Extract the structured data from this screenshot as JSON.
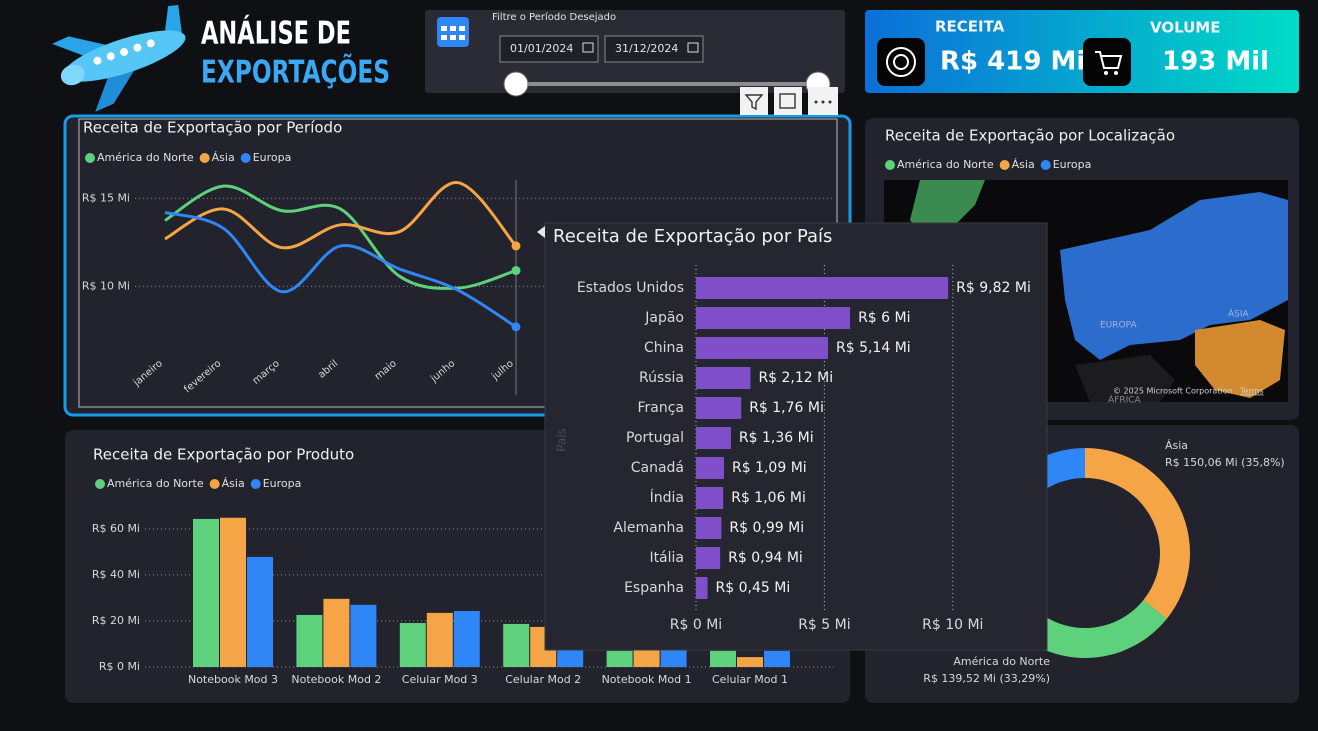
{
  "header": {
    "title_line1": "ANÁLISE DE",
    "title_line2": "EXPORTAÇÕES"
  },
  "filter": {
    "label": "Filtre o Período Desejado",
    "start_date": "01/01/2024",
    "end_date": "31/12/2024"
  },
  "kpis": [
    {
      "label": "RECEITA",
      "value": "R$ 419 Mi"
    },
    {
      "label": "VOLUME",
      "value": "193 Mil"
    }
  ],
  "map": {
    "title": "Receita de Exportação por Localização",
    "legend": [
      {
        "name": "América do Norte",
        "color": "#5dd17b"
      },
      {
        "name": "Ásia",
        "color": "#f5a545"
      },
      {
        "name": "Europa",
        "color": "#2f86f6"
      }
    ],
    "labels": [
      "EUROPA",
      "ÁSIA",
      "ÁFRICA"
    ],
    "attribution": "© 2025 Microsoft Corporation",
    "terms": "Terms"
  },
  "chart_data": [
    {
      "type": "line",
      "title": "Receita de Exportação por Período",
      "categories": [
        "janeiro",
        "fevereiro",
        "março",
        "abril",
        "maio",
        "junho",
        "julho",
        null,
        null,
        null,
        null,
        null
      ],
      "series": [
        {
          "name": "América do Norte",
          "color": "#5dd17b",
          "values": [
            13.75,
            15.7,
            14.3,
            14.4,
            10.6,
            9.9,
            10.9,
            null,
            null,
            null,
            null,
            null
          ]
        },
        {
          "name": "Ásia",
          "color": "#f5a545",
          "values": [
            12.7,
            14.4,
            12.2,
            13.5,
            13.1,
            15.9,
            12.3,
            null,
            null,
            null,
            null,
            null
          ]
        },
        {
          "name": "Europa",
          "color": "#2f86f6",
          "values": [
            14.2,
            13.3,
            9.7,
            12.3,
            11.0,
            9.8,
            7.7,
            null,
            null,
            null,
            null,
            null
          ]
        }
      ],
      "ylim": [
        6.5,
        16.5
      ],
      "yticks": [
        {
          "value": 10,
          "label": "R$ 10 Mi"
        },
        {
          "value": 15,
          "label": "R$ 15 Mi"
        }
      ],
      "grid": true
    },
    {
      "type": "bar",
      "title": "Receita de Exportação por Produto",
      "categories": [
        "Notebook Mod 3",
        "Notebook Mod 2",
        "Celular Mod 3",
        "Celular Mod 2",
        "Notebook Mod 1",
        "Celular Mod 1"
      ],
      "series": [
        {
          "name": "América do Norte",
          "color": "#5dd17b",
          "values": [
            64.3,
            22.6,
            19.1,
            18.7,
            7.0,
            7.0
          ]
        },
        {
          "name": "Ásia",
          "color": "#f5a545",
          "values": [
            64.8,
            29.6,
            23.5,
            17.4,
            7.4,
            4.3
          ]
        },
        {
          "name": "Europa",
          "color": "#2f86f6",
          "values": [
            47.8,
            27.0,
            24.3,
            7.4,
            7.4,
            7.0
          ]
        }
      ],
      "ylim": [
        0,
        66
      ],
      "yticks": [
        {
          "value": 0,
          "label": "R$ 0 Mi"
        },
        {
          "value": 20,
          "label": "R$ 20 Mi"
        },
        {
          "value": 40,
          "label": "R$ 40 Mi"
        },
        {
          "value": 60,
          "label": "R$ 60 Mi"
        }
      ],
      "grid": true
    },
    {
      "type": "donut",
      "categories": [
        "Ásia",
        "América do Norte",
        null
      ],
      "values": [
        150.06,
        139.52,
        129.48
      ],
      "value_labels": [
        "R$ 150,06 Mi (35,8%)",
        "R$ 139,52 Mi (33,29%)",
        null
      ],
      "colors": [
        "#f5a545",
        "#5dd17b",
        "#2f86f6"
      ]
    },
    {
      "type": "barh",
      "title": "Receita de Exportação por País",
      "y_label": "País",
      "categories": [
        "Estados Unidos",
        "Japão",
        "China",
        "Rússia",
        "França",
        "Portugal",
        "Canadá",
        "Índia",
        "Alemanha",
        "Itália",
        "Espanha"
      ],
      "values": [
        9.82,
        6,
        5.14,
        2.12,
        1.76,
        1.36,
        1.09,
        1.06,
        0.99,
        0.94,
        0.45
      ],
      "value_labels": [
        "R$ 9,82 Mi",
        "R$ 6 Mi",
        "R$ 5,14 Mi",
        "R$ 2,12 Mi",
        "R$ 1,76 Mi",
        "R$ 1,36 Mi",
        "R$ 1,09 Mi",
        "R$ 1,06 Mi",
        "R$ 0,99 Mi",
        "R$ 0,94 Mi",
        "R$ 0,45 Mi"
      ],
      "color": "#7e4fc8",
      "xlim": [
        0,
        12.5
      ],
      "xticks": [
        {
          "value": 0,
          "label": "R$ 0 Mi"
        },
        {
          "value": 5,
          "label": "R$ 5 Mi"
        },
        {
          "value": 10,
          "label": "R$ 10 Mi"
        }
      ],
      "grid": true
    }
  ]
}
